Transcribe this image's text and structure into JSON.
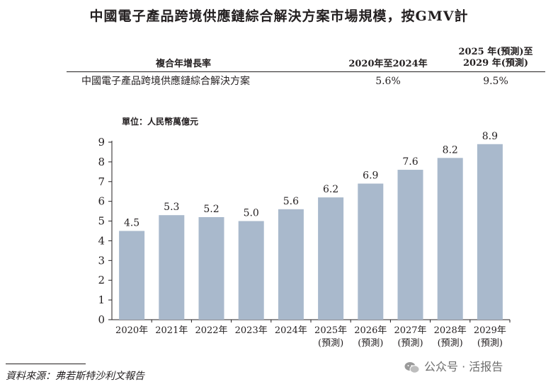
{
  "title": "中國電子產品跨境供應鏈綜合解決方案市場規模，按GMV計",
  "cagr_table": {
    "label": "複合年增長率",
    "col1_header": "2020年至2024年",
    "col2_header_line1": "2025 年(預測)至",
    "col2_header_line2": "2029 年(預測)",
    "row_label": "中國電子產品跨境供應鏈綜合解決方案",
    "row_v1": "5.6%",
    "row_v2": "9.5%"
  },
  "unit_label": "單位：人民幣萬億元",
  "source": "資料來源：弗若斯特沙利文報告",
  "watermark": "公众号 · 活报告",
  "colors": {
    "bar": "#a9b9cc",
    "text": "#231f20"
  },
  "chart_data": {
    "type": "bar",
    "categories": [
      "2020年",
      "2021年",
      "2022年",
      "2023年",
      "2024年",
      "2025年",
      "2026年",
      "2027年",
      "2028年",
      "2029年"
    ],
    "category_sublabels": [
      "",
      "",
      "",
      "",
      "",
      "(預測)",
      "(預測)",
      "(預測)",
      "(預測)",
      "(預測)"
    ],
    "values": [
      4.5,
      5.3,
      5.2,
      5.0,
      5.6,
      6.2,
      6.9,
      7.6,
      8.2,
      8.9
    ],
    "value_labels": [
      "4.5",
      "5.3",
      "5.2",
      "5.0",
      "5.6",
      "6.2",
      "6.9",
      "7.6",
      "8.2",
      "8.9"
    ],
    "yticks": [
      0,
      1,
      2,
      3,
      4,
      5,
      6,
      7,
      8,
      9
    ],
    "ylim": [
      0,
      9
    ],
    "grid": false,
    "legend": "none"
  }
}
